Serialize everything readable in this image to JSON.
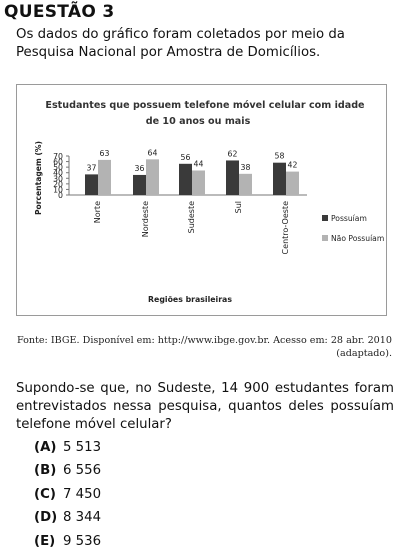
{
  "header": {
    "title": "QUESTÃO 3"
  },
  "intro": "Os dados do gráfico foram coletados por meio da Pesquisa Nacional por Amostra de Domicílios.",
  "chart_data": {
    "type": "bar",
    "title_line1": "Estudantes que possuem telefone móvel celular com idade",
    "title_line2": "de 10 anos ou mais",
    "xlabel": "Regiões brasileiras",
    "ylabel": "Porcentagem (%)",
    "ylim": [
      0,
      70
    ],
    "yticks": [
      "0",
      "10",
      "20",
      "30",
      "40",
      "50",
      "60",
      "70"
    ],
    "grid": false,
    "legend_position": "right",
    "categories": [
      "Norte",
      "Nordeste",
      "Sudeste",
      "Sul",
      "Centro-Oeste"
    ],
    "series": [
      {
        "name": "Possuíam",
        "color": "#3a3a3a",
        "values": [
          37,
          36,
          56,
          62,
          58
        ]
      },
      {
        "name": "Não Possuíam",
        "color": "#b3b3b3",
        "values": [
          63,
          64,
          44,
          38,
          42
        ]
      }
    ],
    "value_labels": [
      [
        "37",
        "36",
        "56",
        "62",
        "58"
      ],
      [
        "63",
        "64",
        "44",
        "38",
        "42"
      ]
    ]
  },
  "source": "Fonte: IBGE. Disponível em: http://www.ibge.gov.br. Acesso em: 28 abr. 2010 (adaptado).",
  "question": "Supondo-se que, no Sudeste, 14 900 estudantes foram entrevistados nessa pesquisa, quantos deles possuíam telefone móvel celular?",
  "options": [
    {
      "letter": "(A)",
      "text": "5 513"
    },
    {
      "letter": "(B)",
      "text": "6 556"
    },
    {
      "letter": "(C)",
      "text": "7 450"
    },
    {
      "letter": "(D)",
      "text": "8 344"
    },
    {
      "letter": "(E)",
      "text": "9 536"
    }
  ]
}
